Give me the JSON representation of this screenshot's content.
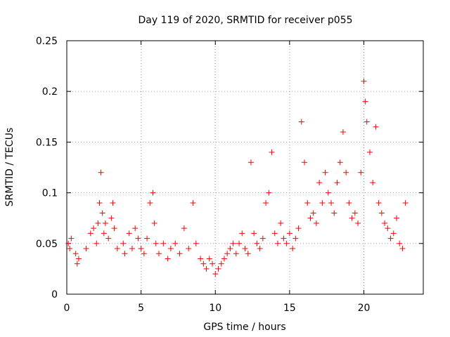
{
  "chart_data": {
    "type": "scatter",
    "title": "Day 119 of 2020, SRMTID for receiver p055",
    "xlabel": "GPS time / hours",
    "ylabel": "SRMTID / TECUs",
    "xlim": [
      0,
      24
    ],
    "ylim": [
      0,
      0.25
    ],
    "xticks": [
      0,
      5,
      10,
      15,
      20
    ],
    "yticks": [
      0,
      0.05,
      0.1,
      0.15,
      0.2,
      0.25
    ],
    "xtick_labels": [
      "0",
      "5",
      "10",
      "15",
      "20"
    ],
    "ytick_labels": [
      "0",
      "0.05",
      "0.1",
      "0.15",
      "0.2",
      "0.25"
    ],
    "grid": true,
    "marker": "+",
    "color": "#ff0000",
    "series": [
      {
        "name": "SRMTID",
        "points": [
          [
            0.1,
            0.05
          ],
          [
            0.2,
            0.045
          ],
          [
            0.3,
            0.055
          ],
          [
            0.6,
            0.04
          ],
          [
            0.7,
            0.03
          ],
          [
            0.8,
            0.035
          ],
          [
            1.3,
            0.045
          ],
          [
            1.6,
            0.06
          ],
          [
            1.8,
            0.065
          ],
          [
            2.0,
            0.05
          ],
          [
            2.1,
            0.07
          ],
          [
            2.2,
            0.09
          ],
          [
            2.3,
            0.12
          ],
          [
            2.4,
            0.08
          ],
          [
            2.5,
            0.06
          ],
          [
            2.6,
            0.07
          ],
          [
            2.8,
            0.055
          ],
          [
            3.0,
            0.075
          ],
          [
            3.1,
            0.09
          ],
          [
            3.2,
            0.065
          ],
          [
            3.4,
            0.045
          ],
          [
            3.8,
            0.05
          ],
          [
            3.9,
            0.04
          ],
          [
            4.2,
            0.06
          ],
          [
            4.4,
            0.045
          ],
          [
            4.6,
            0.065
          ],
          [
            4.8,
            0.055
          ],
          [
            5.0,
            0.045
          ],
          [
            5.2,
            0.04
          ],
          [
            5.4,
            0.055
          ],
          [
            5.6,
            0.09
          ],
          [
            5.8,
            0.1
          ],
          [
            5.9,
            0.07
          ],
          [
            6.0,
            0.05
          ],
          [
            6.2,
            0.04
          ],
          [
            6.5,
            0.05
          ],
          [
            6.8,
            0.035
          ],
          [
            7.0,
            0.045
          ],
          [
            7.3,
            0.05
          ],
          [
            7.6,
            0.04
          ],
          [
            7.9,
            0.065
          ],
          [
            8.2,
            0.045
          ],
          [
            8.5,
            0.09
          ],
          [
            8.7,
            0.05
          ],
          [
            9.0,
            0.035
          ],
          [
            9.2,
            0.03
          ],
          [
            9.4,
            0.025
          ],
          [
            9.6,
            0.035
          ],
          [
            9.8,
            0.03
          ],
          [
            10.0,
            0.02
          ],
          [
            10.2,
            0.025
          ],
          [
            10.4,
            0.03
          ],
          [
            10.6,
            0.035
          ],
          [
            10.8,
            0.04
          ],
          [
            11.0,
            0.045
          ],
          [
            11.2,
            0.05
          ],
          [
            11.4,
            0.04
          ],
          [
            11.6,
            0.05
          ],
          [
            11.8,
            0.06
          ],
          [
            12.0,
            0.045
          ],
          [
            12.2,
            0.04
          ],
          [
            12.4,
            0.13
          ],
          [
            12.6,
            0.06
          ],
          [
            12.8,
            0.05
          ],
          [
            13.0,
            0.045
          ],
          [
            13.2,
            0.055
          ],
          [
            13.4,
            0.09
          ],
          [
            13.6,
            0.1
          ],
          [
            13.8,
            0.14
          ],
          [
            14.0,
            0.06
          ],
          [
            14.2,
            0.05
          ],
          [
            14.4,
            0.07
          ],
          [
            14.6,
            0.055
          ],
          [
            14.8,
            0.05
          ],
          [
            15.0,
            0.06
          ],
          [
            15.2,
            0.045
          ],
          [
            15.4,
            0.055
          ],
          [
            15.6,
            0.065
          ],
          [
            15.8,
            0.17
          ],
          [
            16.0,
            0.13
          ],
          [
            16.2,
            0.09
          ],
          [
            16.4,
            0.075
          ],
          [
            16.6,
            0.08
          ],
          [
            16.8,
            0.07
          ],
          [
            17.0,
            0.11
          ],
          [
            17.2,
            0.09
          ],
          [
            17.4,
            0.12
          ],
          [
            17.6,
            0.1
          ],
          [
            17.8,
            0.09
          ],
          [
            18.0,
            0.08
          ],
          [
            18.2,
            0.11
          ],
          [
            18.4,
            0.13
          ],
          [
            18.6,
            0.16
          ],
          [
            18.8,
            0.12
          ],
          [
            19.0,
            0.09
          ],
          [
            19.2,
            0.075
          ],
          [
            19.4,
            0.08
          ],
          [
            19.6,
            0.07
          ],
          [
            19.8,
            0.12
          ],
          [
            20.0,
            0.21
          ],
          [
            20.1,
            0.19
          ],
          [
            20.2,
            0.17
          ],
          [
            20.4,
            0.14
          ],
          [
            20.6,
            0.11
          ],
          [
            20.8,
            0.165
          ],
          [
            21.0,
            0.09
          ],
          [
            21.2,
            0.08
          ],
          [
            21.4,
            0.07
          ],
          [
            21.6,
            0.065
          ],
          [
            21.8,
            0.055
          ],
          [
            22.0,
            0.06
          ],
          [
            22.2,
            0.075
          ],
          [
            22.4,
            0.05
          ],
          [
            22.6,
            0.045
          ],
          [
            22.8,
            0.09
          ]
        ]
      }
    ]
  }
}
